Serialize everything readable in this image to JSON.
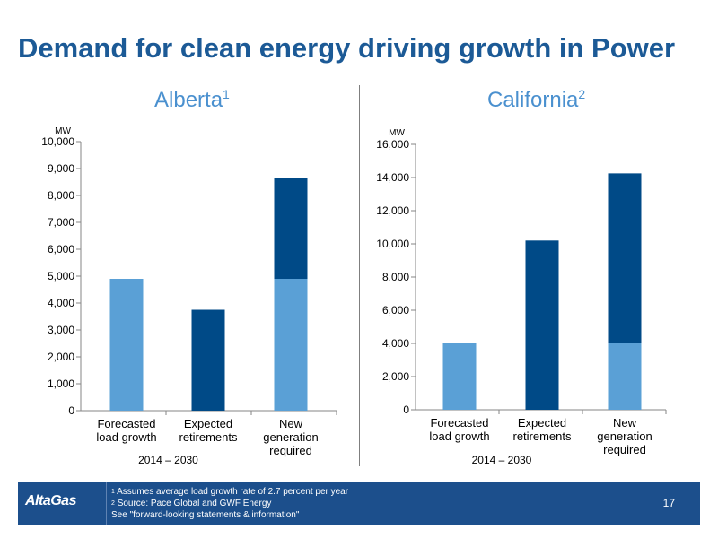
{
  "slide": {
    "title": "Demand for clean energy driving growth in Power",
    "page_number": "17"
  },
  "colors": {
    "title": "#1c5a96",
    "panel_title": "#4a90cf",
    "light_bar": "#5aa0d6",
    "dark_bar": "#004a87",
    "footer_bg": "#1c4f8c"
  },
  "chart_data": [
    {
      "type": "bar",
      "stacked": true,
      "title": "Alberta",
      "title_note": "1",
      "ylabel": "MW",
      "ylim": [
        0,
        10000
      ],
      "yticks": [
        "0",
        "1,000",
        "2,000",
        "3,000",
        "4,000",
        "5,000",
        "6,000",
        "7,000",
        "8,000",
        "9,000",
        "10,000"
      ],
      "categories": [
        [
          "Forecasted",
          "load growth"
        ],
        [
          "Expected",
          "retirements"
        ],
        [
          "New",
          "generation",
          "required"
        ]
      ],
      "xlabel": "2014 – 2030",
      "series": [
        {
          "color": "light",
          "values": [
            4900,
            0,
            4900
          ]
        },
        {
          "color": "dark",
          "values": [
            0,
            3750,
            3750
          ]
        }
      ]
    },
    {
      "type": "bar",
      "stacked": true,
      "title": "California",
      "title_note": "2",
      "ylabel": "MW",
      "ylim": [
        0,
        16000
      ],
      "yticks": [
        "0",
        "2,000",
        "4,000",
        "6,000",
        "8,000",
        "10,000",
        "12,000",
        "14,000",
        "16,000"
      ],
      "categories": [
        [
          "Forecasted",
          "load growth"
        ],
        [
          "Expected",
          "retirements"
        ],
        [
          "New",
          "generation",
          "required"
        ]
      ],
      "xlabel": "2014 – 2030",
      "series": [
        {
          "color": "light",
          "values": [
            4050,
            0,
            4050
          ]
        },
        {
          "color": "dark",
          "values": [
            0,
            10200,
            10200
          ]
        }
      ]
    }
  ],
  "footer": {
    "logo": "AltaGas",
    "notes": [
      {
        "mark": "1",
        "text": "Assumes average load growth rate of 2.7 percent per year"
      },
      {
        "mark": "2",
        "text": "Source: Pace Global and GWF Energy"
      },
      {
        "mark": "",
        "text": "See \"forward-looking statements & information\""
      }
    ]
  }
}
